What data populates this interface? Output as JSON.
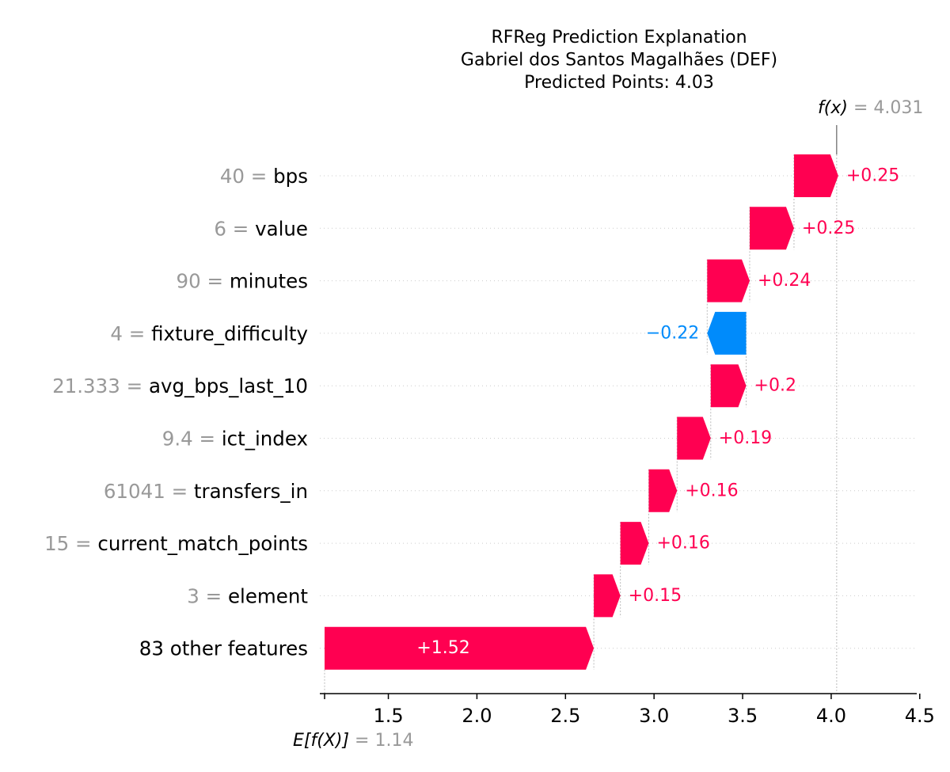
{
  "chart_data": {
    "type": "waterfall",
    "title_lines": [
      "RFReg Prediction Explanation",
      "Gabriel dos Santos Magalhães (DEF)",
      "Predicted Points: 4.03"
    ],
    "base_value": 1.14,
    "base_label": "E[f(X)]",
    "base_value_text": "= 1.14",
    "output_value": 4.031,
    "output_label": "f(x)",
    "output_value_text": "= 4.031",
    "x_range": [
      1.14,
      4.5
    ],
    "x_ticks": [
      1.5,
      2.0,
      2.5,
      3.0,
      3.5,
      4.0,
      4.5
    ],
    "x_tick_labels": [
      "1.5",
      "2.0",
      "2.5",
      "3.0",
      "3.5",
      "4.0",
      "4.5"
    ],
    "features": [
      {
        "value": "40",
        "name": "bps",
        "contribution": 0.25,
        "label": "+0.25"
      },
      {
        "value": "6",
        "name": "value",
        "contribution": 0.25,
        "label": "+0.25"
      },
      {
        "value": "90",
        "name": "minutes",
        "contribution": 0.24,
        "label": "+0.24"
      },
      {
        "value": "4",
        "name": "fixture_difficulty",
        "contribution": -0.22,
        "label": "−0.22"
      },
      {
        "value": "21.333",
        "name": "avg_bps_last_10",
        "contribution": 0.2,
        "label": "+0.2"
      },
      {
        "value": "9.4",
        "name": "ict_index",
        "contribution": 0.19,
        "label": "+0.19"
      },
      {
        "value": "61041",
        "name": "transfers_in",
        "contribution": 0.16,
        "label": "+0.16"
      },
      {
        "value": "15",
        "name": "current_match_points",
        "contribution": 0.16,
        "label": "+0.16"
      },
      {
        "value": "3",
        "name": "element",
        "contribution": 0.15,
        "label": "+0.15"
      },
      {
        "value": "",
        "name": "83 other features",
        "contribution": 1.52,
        "label": "+1.52"
      }
    ],
    "colors": {
      "positive": "#ff0051",
      "negative": "#008bfb",
      "feature_value_gray": "#999999",
      "text": "#000000"
    }
  }
}
